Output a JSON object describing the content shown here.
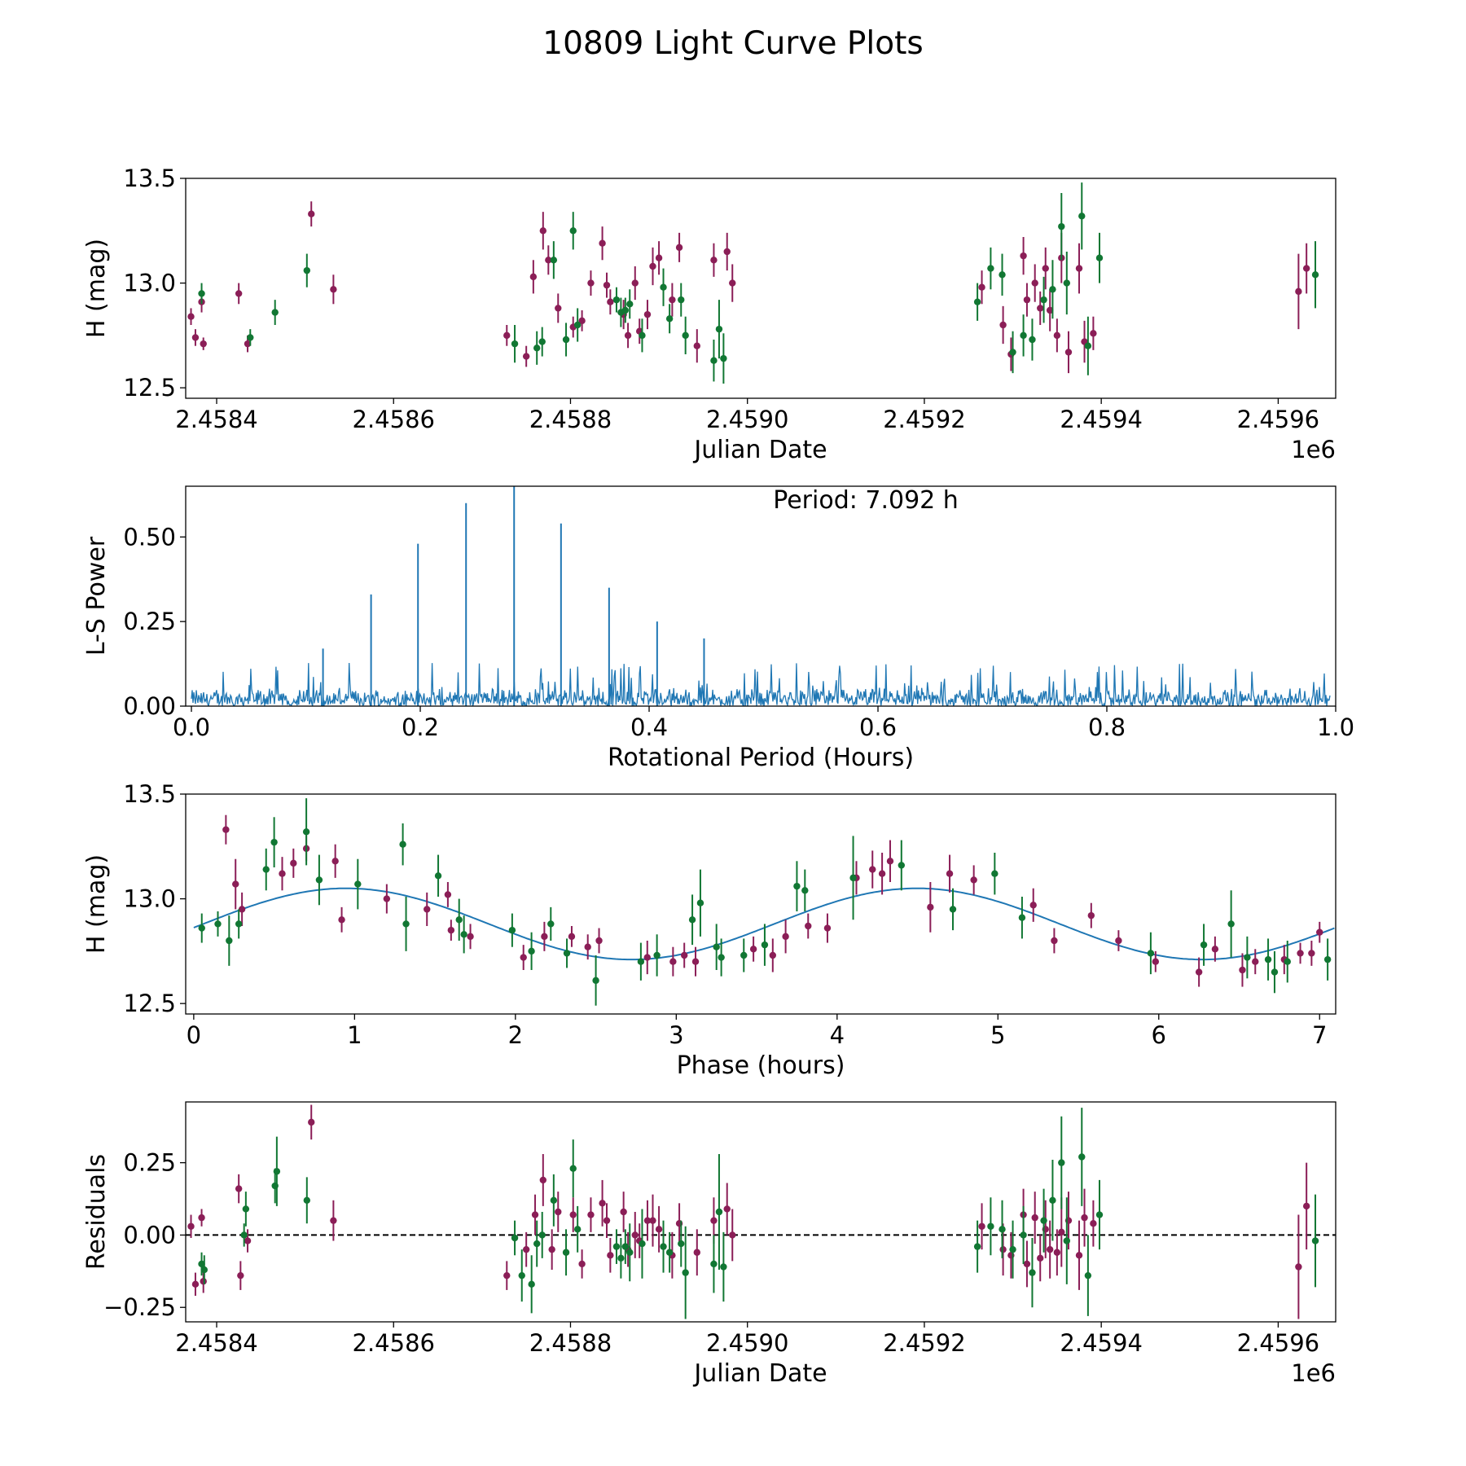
{
  "suptitle": "10809 Light Curve Plots",
  "colors": {
    "filter_a": "#8b1e57",
    "filter_b": "#117733",
    "model": "#1f77b4",
    "power": "#1f77b4",
    "zero_line": "#000000"
  },
  "chart_data": [
    {
      "type": "scatter",
      "panel": "lightcurve",
      "xlabel": "Julian Date",
      "ylabel": "H (mag)",
      "offset_label": "1e6",
      "xlim": [
        2458365,
        2459665
      ],
      "ylim": [
        12.45,
        13.5
      ],
      "xticks": [
        2458400,
        2458600,
        2458800,
        2459000,
        2459200,
        2459400,
        2459600
      ],
      "xtick_labels": [
        "2.4584",
        "2.4586",
        "2.4588",
        "2.4590",
        "2.4592",
        "2.4594",
        "2.4596"
      ],
      "yticks": [
        12.5,
        13.0,
        13.5
      ],
      "ytick_labels": [
        "12.5",
        "13.0",
        "13.5"
      ],
      "series": [
        {
          "name": "filter_a",
          "color": "#8b1e57",
          "x": [
            2458371,
            2458376,
            2458383,
            2458385,
            2458425,
            2458435,
            2458507,
            2458532,
            2458728,
            2458750,
            2458758,
            2458769,
            2458775,
            2458786,
            2458803,
            2458813,
            2458823,
            2458836,
            2458841,
            2458845,
            2458860,
            2458865,
            2458873,
            2458878,
            2458887,
            2458893,
            2458900,
            2458915,
            2458923,
            2458943,
            2458962,
            2458977,
            2458983,
            2459265,
            2459289,
            2459298,
            2459312,
            2459316,
            2459325,
            2459331,
            2459337,
            2459342,
            2459350,
            2459355,
            2459363,
            2459375,
            2459381,
            2459391,
            2459623,
            2459632
          ],
          "y": [
            12.84,
            12.74,
            12.91,
            12.71,
            12.95,
            12.71,
            13.33,
            12.97,
            12.75,
            12.65,
            13.03,
            13.25,
            13.11,
            12.88,
            12.79,
            12.82,
            13.0,
            13.19,
            12.99,
            12.91,
            12.85,
            12.75,
            13.0,
            12.77,
            12.85,
            13.08,
            13.12,
            12.92,
            13.17,
            12.7,
            13.11,
            13.15,
            13.0,
            12.98,
            12.8,
            12.66,
            13.13,
            12.92,
            13.0,
            12.88,
            13.07,
            12.87,
            12.75,
            13.12,
            12.67,
            13.07,
            12.72,
            12.76,
            12.96,
            13.07
          ],
          "err": [
            0.04,
            0.04,
            0.05,
            0.03,
            0.05,
            0.04,
            0.06,
            0.07,
            0.05,
            0.05,
            0.08,
            0.09,
            0.07,
            0.07,
            0.05,
            0.05,
            0.06,
            0.08,
            0.06,
            0.06,
            0.07,
            0.06,
            0.08,
            0.06,
            0.07,
            0.09,
            0.08,
            0.08,
            0.07,
            0.08,
            0.08,
            0.09,
            0.09,
            0.08,
            0.09,
            0.08,
            0.09,
            0.08,
            0.09,
            0.08,
            0.1,
            0.1,
            0.08,
            0.12,
            0.1,
            0.12,
            0.1,
            0.08,
            0.18,
            0.12
          ]
        },
        {
          "name": "filter_b",
          "color": "#117733",
          "x": [
            2458383,
            2458438,
            2458466,
            2458502,
            2458737,
            2458762,
            2458768,
            2458781,
            2458795,
            2458803,
            2458808,
            2458852,
            2458857,
            2458862,
            2458867,
            2458881,
            2458905,
            2458912,
            2458925,
            2458930,
            2458962,
            2458968,
            2458973,
            2459260,
            2459275,
            2459288,
            2459300,
            2459312,
            2459322,
            2459335,
            2459345,
            2459355,
            2459361,
            2459378,
            2459385,
            2459398,
            2459642
          ],
          "y": [
            12.95,
            12.74,
            12.86,
            13.06,
            12.71,
            12.69,
            12.72,
            13.11,
            12.73,
            13.25,
            12.8,
            12.92,
            12.86,
            12.87,
            12.9,
            12.75,
            12.98,
            12.83,
            12.92,
            12.75,
            12.63,
            12.78,
            12.64,
            12.91,
            13.07,
            13.04,
            12.67,
            12.75,
            12.73,
            12.92,
            12.97,
            13.27,
            13.0,
            13.32,
            12.7,
            13.12,
            13.04
          ],
          "err": [
            0.05,
            0.04,
            0.06,
            0.08,
            0.09,
            0.08,
            0.07,
            0.09,
            0.08,
            0.09,
            0.08,
            0.06,
            0.07,
            0.06,
            0.07,
            0.08,
            0.09,
            0.07,
            0.08,
            0.09,
            0.1,
            0.14,
            0.12,
            0.09,
            0.1,
            0.1,
            0.1,
            0.1,
            0.1,
            0.11,
            0.14,
            0.16,
            0.15,
            0.16,
            0.14,
            0.12,
            0.16
          ]
        }
      ]
    },
    {
      "type": "line",
      "panel": "periodogram",
      "annotation": "Period: 7.092 h",
      "xlabel": "Rotational Period (Hours)",
      "ylabel": "L-S Power",
      "xlim": [
        -0.005,
        1.0
      ],
      "ylim": [
        0.0,
        0.65
      ],
      "xticks": [
        0.0,
        0.2,
        0.4,
        0.6,
        0.8,
        1.0
      ],
      "xtick_labels": [
        "0.0",
        "0.2",
        "0.4",
        "0.6",
        "0.8",
        "1.0"
      ],
      "yticks": [
        0.0,
        0.25,
        0.5
      ],
      "ytick_labels": [
        "0.00",
        "0.25",
        "0.50"
      ],
      "noise_level": 0.06,
      "noise_max": 0.13,
      "peaks": [
        {
          "x": 0.115,
          "y": 0.17
        },
        {
          "x": 0.157,
          "y": 0.33
        },
        {
          "x": 0.198,
          "y": 0.48
        },
        {
          "x": 0.24,
          "y": 0.6
        },
        {
          "x": 0.282,
          "y": 0.65
        },
        {
          "x": 0.323,
          "y": 0.54
        },
        {
          "x": 0.365,
          "y": 0.35
        },
        {
          "x": 0.407,
          "y": 0.25
        },
        {
          "x": 0.448,
          "y": 0.2
        }
      ]
    },
    {
      "type": "scatter",
      "panel": "phased",
      "xlabel": "Phase (hours)",
      "ylabel": "H (mag)",
      "xlim": [
        -0.05,
        7.1
      ],
      "ylim": [
        12.45,
        13.5
      ],
      "xticks": [
        0,
        1,
        2,
        3,
        4,
        5,
        6,
        7
      ],
      "xtick_labels": [
        "0",
        "1",
        "2",
        "3",
        "4",
        "5",
        "6",
        "7"
      ],
      "yticks": [
        12.5,
        13.0,
        13.5
      ],
      "ytick_labels": [
        "12.5",
        "13.0",
        "13.5"
      ],
      "model": {
        "mean": 12.88,
        "amp1": 0.17,
        "period": 3.55,
        "phase0": -0.025
      },
      "series": [
        {
          "name": "filter_a",
          "color": "#8b1e57",
          "x": [
            0.2,
            0.26,
            0.3,
            0.55,
            0.62,
            0.7,
            0.88,
            0.92,
            1.2,
            1.45,
            1.58,
            1.6,
            1.72,
            2.05,
            2.18,
            2.35,
            2.45,
            2.52,
            2.82,
            2.98,
            3.05,
            3.12,
            3.48,
            3.6,
            3.68,
            3.82,
            3.94,
            4.12,
            4.22,
            4.28,
            4.33,
            4.58,
            4.7,
            4.85,
            5.22,
            5.35,
            5.58,
            5.75,
            5.98,
            6.25,
            6.35,
            6.52,
            6.6,
            6.78,
            6.88,
            6.95,
            7.0
          ],
          "y": [
            13.33,
            13.07,
            12.95,
            13.12,
            13.17,
            13.24,
            13.18,
            12.9,
            13.0,
            12.95,
            13.02,
            12.85,
            12.82,
            12.72,
            12.82,
            12.82,
            12.77,
            12.8,
            12.72,
            12.7,
            12.73,
            12.7,
            12.76,
            12.73,
            12.82,
            12.87,
            12.86,
            13.1,
            13.14,
            13.12,
            13.18,
            12.96,
            13.12,
            13.09,
            12.97,
            12.8,
            12.92,
            12.8,
            12.7,
            12.65,
            12.76,
            12.66,
            12.7,
            12.71,
            12.74,
            12.74,
            12.84
          ],
          "err": [
            0.07,
            0.12,
            0.08,
            0.08,
            0.07,
            0.06,
            0.08,
            0.06,
            0.07,
            0.08,
            0.06,
            0.05,
            0.06,
            0.06,
            0.07,
            0.05,
            0.06,
            0.06,
            0.08,
            0.07,
            0.06,
            0.07,
            0.06,
            0.08,
            0.08,
            0.06,
            0.07,
            0.08,
            0.09,
            0.1,
            0.1,
            0.12,
            0.09,
            0.07,
            0.08,
            0.06,
            0.06,
            0.05,
            0.05,
            0.07,
            0.06,
            0.08,
            0.06,
            0.07,
            0.05,
            0.06,
            0.05
          ]
        },
        {
          "name": "filter_b",
          "color": "#117733",
          "x": [
            0.05,
            0.15,
            0.22,
            0.28,
            0.45,
            0.5,
            0.7,
            0.78,
            1.02,
            1.3,
            1.32,
            1.52,
            1.65,
            1.68,
            1.98,
            2.1,
            2.22,
            2.32,
            2.5,
            2.78,
            2.88,
            3.1,
            3.15,
            3.25,
            3.28,
            3.42,
            3.55,
            3.75,
            3.8,
            4.1,
            4.4,
            4.72,
            4.98,
            5.15,
            5.95,
            6.28,
            6.45,
            6.55,
            6.68,
            6.72,
            6.8,
            7.05
          ],
          "y": [
            12.86,
            12.88,
            12.8,
            12.88,
            13.14,
            13.27,
            13.32,
            13.09,
            13.07,
            13.26,
            12.88,
            13.11,
            12.9,
            12.83,
            12.85,
            12.75,
            12.88,
            12.74,
            12.61,
            12.7,
            12.73,
            12.9,
            12.98,
            12.77,
            12.72,
            12.73,
            12.78,
            13.06,
            13.04,
            13.1,
            13.16,
            12.95,
            13.12,
            12.91,
            12.74,
            12.78,
            12.88,
            12.72,
            12.71,
            12.65,
            12.7,
            12.71
          ],
          "err": [
            0.07,
            0.06,
            0.12,
            0.07,
            0.1,
            0.12,
            0.16,
            0.12,
            0.12,
            0.1,
            0.13,
            0.1,
            0.1,
            0.09,
            0.08,
            0.09,
            0.08,
            0.07,
            0.12,
            0.09,
            0.1,
            0.12,
            0.16,
            0.11,
            0.09,
            0.08,
            0.1,
            0.12,
            0.1,
            0.2,
            0.12,
            0.1,
            0.1,
            0.1,
            0.1,
            0.1,
            0.16,
            0.1,
            0.1,
            0.1,
            0.1,
            0.1
          ]
        }
      ]
    },
    {
      "type": "scatter",
      "panel": "residuals",
      "xlabel": "Julian Date",
      "ylabel": "Residuals",
      "offset_label": "1e6",
      "xlim": [
        2458365,
        2459665
      ],
      "ylim": [
        -0.3,
        0.46
      ],
      "xticks": [
        2458400,
        2458600,
        2458800,
        2459000,
        2459200,
        2459400,
        2459600
      ],
      "xtick_labels": [
        "2.4584",
        "2.4586",
        "2.4588",
        "2.4590",
        "2.4592",
        "2.4594",
        "2.4596"
      ],
      "yticks": [
        -0.25,
        0.0,
        0.25
      ],
      "ytick_labels": [
        "−0.25",
        "0.00",
        "0.25"
      ],
      "zero_line": 0.0,
      "series": [
        {
          "name": "filter_a",
          "color": "#8b1e57",
          "x": [
            2458371,
            2458376,
            2458383,
            2458385,
            2458425,
            2458427,
            2458435,
            2458507,
            2458532,
            2458728,
            2458750,
            2458760,
            2458769,
            2458779,
            2458786,
            2458803,
            2458813,
            2458823,
            2458836,
            2458841,
            2458845,
            2458860,
            2458865,
            2458873,
            2458878,
            2458887,
            2458893,
            2458900,
            2458915,
            2458923,
            2458943,
            2458962,
            2458977,
            2458983,
            2459265,
            2459289,
            2459298,
            2459312,
            2459316,
            2459325,
            2459331,
            2459337,
            2459342,
            2459350,
            2459355,
            2459363,
            2459375,
            2459381,
            2459391,
            2459623,
            2459632
          ],
          "y": [
            0.03,
            -0.17,
            0.06,
            -0.16,
            0.16,
            -0.14,
            -0.02,
            0.39,
            0.05,
            -0.14,
            -0.05,
            0.07,
            0.19,
            -0.05,
            0.08,
            0.07,
            -0.1,
            0.07,
            0.11,
            0.05,
            -0.07,
            0.08,
            -0.05,
            0.0,
            -0.02,
            0.05,
            0.05,
            0.02,
            -0.07,
            0.04,
            -0.06,
            0.05,
            0.09,
            0.0,
            0.03,
            -0.05,
            -0.07,
            0.07,
            -0.1,
            0.06,
            -0.08,
            0.02,
            -0.05,
            -0.06,
            0.01,
            0.05,
            -0.07,
            0.06,
            0.04,
            -0.11,
            0.1
          ],
          "err": [
            0.04,
            0.04,
            0.03,
            0.04,
            0.05,
            0.05,
            0.04,
            0.06,
            0.07,
            0.05,
            0.06,
            0.07,
            0.09,
            0.07,
            0.07,
            0.06,
            0.05,
            0.06,
            0.08,
            0.06,
            0.06,
            0.07,
            0.06,
            0.08,
            0.06,
            0.07,
            0.09,
            0.08,
            0.08,
            0.07,
            0.08,
            0.08,
            0.09,
            0.09,
            0.08,
            0.09,
            0.08,
            0.09,
            0.08,
            0.09,
            0.08,
            0.1,
            0.1,
            0.08,
            0.12,
            0.1,
            0.12,
            0.1,
            0.08,
            0.18,
            0.15
          ]
        },
        {
          "name": "filter_b",
          "color": "#117733",
          "x": [
            2458383,
            2458386,
            2458431,
            2458433,
            2458466,
            2458468,
            2458502,
            2458737,
            2458745,
            2458756,
            2458762,
            2458768,
            2458781,
            2458795,
            2458803,
            2458808,
            2458852,
            2458857,
            2458862,
            2458867,
            2458881,
            2458905,
            2458912,
            2458925,
            2458930,
            2458962,
            2458968,
            2458973,
            2459260,
            2459275,
            2459288,
            2459300,
            2459312,
            2459322,
            2459335,
            2459345,
            2459355,
            2459361,
            2459378,
            2459385,
            2459398,
            2459642
          ],
          "y": [
            -0.1,
            -0.12,
            0.0,
            0.09,
            0.17,
            0.22,
            0.12,
            -0.01,
            -0.14,
            -0.17,
            -0.03,
            0.0,
            0.12,
            -0.06,
            0.23,
            0.02,
            -0.04,
            -0.08,
            -0.04,
            -0.06,
            -0.03,
            -0.04,
            -0.06,
            -0.03,
            -0.13,
            -0.1,
            0.08,
            -0.11,
            -0.04,
            0.03,
            0.02,
            -0.05,
            0.0,
            -0.13,
            0.05,
            0.12,
            0.25,
            -0.02,
            0.27,
            -0.14,
            0.07,
            -0.02
          ],
          "err": [
            0.04,
            0.05,
            0.04,
            0.06,
            0.06,
            0.12,
            0.08,
            0.06,
            0.09,
            0.1,
            0.08,
            0.08,
            0.09,
            0.08,
            0.1,
            0.08,
            0.06,
            0.07,
            0.06,
            0.1,
            0.12,
            0.09,
            0.07,
            0.08,
            0.16,
            0.1,
            0.2,
            0.12,
            0.09,
            0.1,
            0.1,
            0.1,
            0.1,
            0.12,
            0.11,
            0.14,
            0.16,
            0.15,
            0.17,
            0.14,
            0.12,
            0.16
          ]
        }
      ]
    }
  ]
}
